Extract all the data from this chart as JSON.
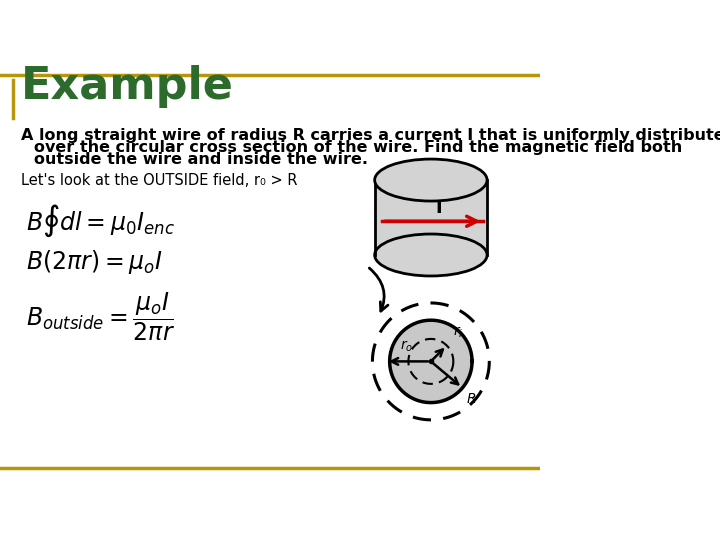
{
  "title": "Example",
  "title_color": "#2d6b2d",
  "title_fontsize": 32,
  "bg_color": "#ffffff",
  "border_top_color": "#b8960c",
  "border_bottom_color": "#b8960c",
  "body_text_line1": "A long straight wire of radius R carries a current I that is uniformly distributed",
  "body_text_line2": "over the circular cross section of the wire. Find the magnetic field both",
  "body_text_line3": "outside the wire and inside the wire.",
  "sub_text": "Let's look at the OUTSIDE field, r₀ > R",
  "eq1": "$B\\oint dl = \\mu_0 I_{enc}$",
  "eq2": "$B(2\\pi r) = \\mu_o I$",
  "eq3": "$B_{outside} = \\dfrac{\\mu_o I}{2\\pi r}$",
  "cylinder_fill": "#d3d3d3",
  "cylinder_edge": "#000000",
  "arrow_color": "#cc0000",
  "circle_fill": "#c8c8c8",
  "dashed_color": "#000000"
}
